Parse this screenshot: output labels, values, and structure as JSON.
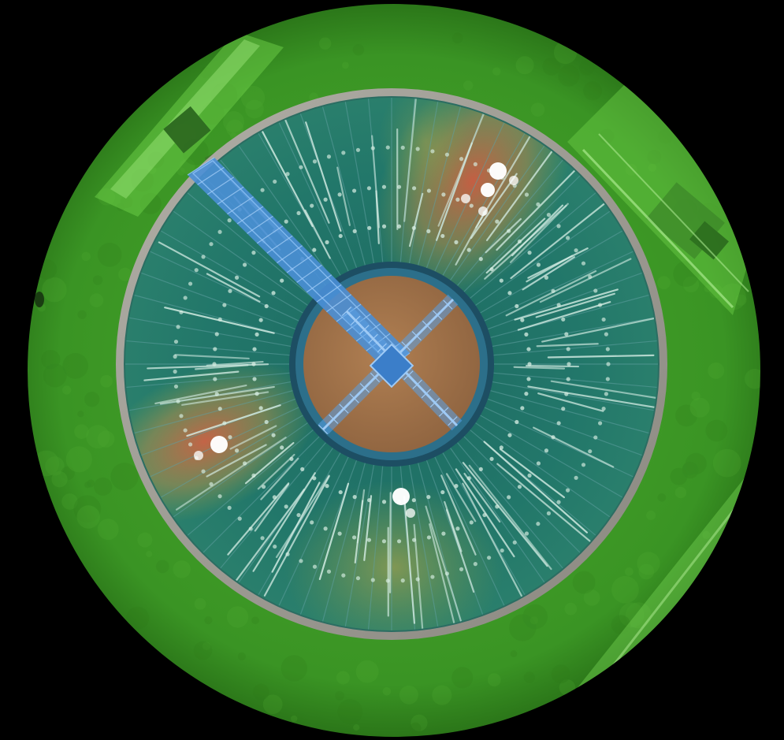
{
  "view": {
    "subject": "",
    "background_color": "#000000"
  },
  "colors": {
    "grass": "#3f9a26",
    "grass_dark": "#2f7a1c",
    "grass_light": "#5cc23a",
    "tank_water": "#1f7066",
    "tank_rim": "#9a9890",
    "bridge": "#4a8fd6",
    "bridge_light": "#7db4f0",
    "hub_sludge": "#a9774a",
    "hot_zone": "#e0553a",
    "warm_zone": "#9aa84a",
    "sensor_marker": "#ffffff",
    "beam_line": "#cfe8df",
    "ring_dots": "#d8efe4"
  },
  "hotspots": [
    {
      "id": "ne-cluster",
      "intensity": "high"
    },
    {
      "id": "sw-cluster",
      "intensity": "high"
    },
    {
      "id": "s-cluster",
      "intensity": "medium"
    }
  ],
  "markers": [
    {
      "cluster": "ne-cluster",
      "size": "large"
    },
    {
      "cluster": "ne-cluster",
      "size": "medium"
    },
    {
      "cluster": "ne-cluster",
      "size": "small"
    },
    {
      "cluster": "ne-cluster",
      "size": "small"
    },
    {
      "cluster": "ne-cluster",
      "size": "small"
    },
    {
      "cluster": "sw-cluster",
      "size": "large"
    },
    {
      "cluster": "sw-cluster",
      "size": "small"
    },
    {
      "cluster": "s-cluster",
      "size": "large"
    },
    {
      "cluster": "s-cluster",
      "size": "small"
    }
  ]
}
